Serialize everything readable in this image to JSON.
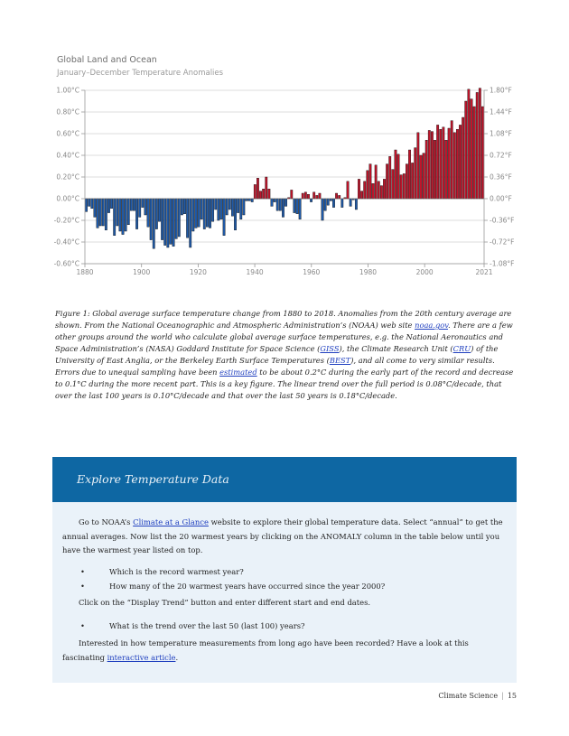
{
  "chart_data": {
    "type": "bar",
    "title": "Global Land and Ocean",
    "subtitle": "January–December Temperature Anomalies",
    "x_ticks": [
      1880,
      1900,
      1920,
      1940,
      1960,
      1980,
      2000,
      2021
    ],
    "y_ticks_left": [
      "1.00°C",
      "0.80°C",
      "0.60°C",
      "0.40°C",
      "0.20°C",
      "0.00°C",
      "-0.20°C",
      "-0.40°C",
      "-0.60°C"
    ],
    "y_ticks_right": [
      "1.80°F",
      "1.44°F",
      "1.08°F",
      "0.72°F",
      "0.36°F",
      "0.00°F",
      "-0.36°F",
      "-0.72°F",
      "-1.08°F"
    ],
    "ylim": [
      -0.6,
      1.0
    ],
    "xlim": [
      1880,
      2021
    ],
    "positive_color": "#c0152b",
    "negative_color": "#1f5aa8",
    "years_start": 1880,
    "values": [
      -0.12,
      -0.07,
      -0.09,
      -0.17,
      -0.27,
      -0.25,
      -0.25,
      -0.29,
      -0.13,
      -0.09,
      -0.34,
      -0.25,
      -0.3,
      -0.33,
      -0.3,
      -0.24,
      -0.11,
      -0.11,
      -0.28,
      -0.17,
      -0.08,
      -0.15,
      -0.26,
      -0.38,
      -0.46,
      -0.28,
      -0.21,
      -0.38,
      -0.43,
      -0.45,
      -0.42,
      -0.44,
      -0.37,
      -0.35,
      -0.15,
      -0.14,
      -0.36,
      -0.45,
      -0.3,
      -0.27,
      -0.26,
      -0.19,
      -0.28,
      -0.26,
      -0.27,
      -0.21,
      -0.1,
      -0.2,
      -0.19,
      -0.34,
      -0.15,
      -0.1,
      -0.16,
      -0.29,
      -0.13,
      -0.19,
      -0.15,
      -0.02,
      -0.02,
      -0.03,
      0.13,
      0.19,
      0.07,
      0.09,
      0.2,
      0.09,
      -0.07,
      -0.03,
      -0.11,
      -0.11,
      -0.17,
      -0.07,
      0.01,
      0.08,
      -0.13,
      -0.14,
      -0.19,
      0.05,
      0.06,
      0.04,
      -0.03,
      0.06,
      0.03,
      0.05,
      -0.2,
      -0.11,
      -0.06,
      -0.02,
      -0.08,
      0.05,
      0.03,
      -0.08,
      0.01,
      0.16,
      -0.07,
      -0.01,
      -0.1,
      0.18,
      0.07,
      0.16,
      0.26,
      0.32,
      0.14,
      0.31,
      0.16,
      0.12,
      0.18,
      0.32,
      0.39,
      0.27,
      0.45,
      0.41,
      0.22,
      0.23,
      0.32,
      0.45,
      0.33,
      0.47,
      0.61,
      0.4,
      0.42,
      0.54,
      0.63,
      0.62,
      0.54,
      0.68,
      0.64,
      0.66,
      0.54,
      0.65,
      0.72,
      0.61,
      0.64,
      0.68,
      0.75,
      0.9,
      1.01,
      0.92,
      0.85,
      0.98,
      1.02,
      0.85
    ]
  },
  "caption": {
    "p1": "Figure 1: Global average surface temperature change from 1880 to 2018. Anomalies from the 20th century average are shown. From the National Oceanographic and Atmospheric Administration’s (NOAA) web site ",
    "link_noaa": "noaa.gov",
    "p2": ". There are a few other groups around the world who calculate global average surface temperatures, e.g. the National Aeronautics and Space Administration’s (NASA) Goddard Institute for Space Science (",
    "link_giss": "GISS",
    "p3": "), the Climate Research Unit (",
    "link_cru": "CRU",
    "p4": ") of the University of East Anglia, or the Berkeley Earth Surface Temperatures (",
    "link_best": "BEST",
    "p5": "), and all come to very similar results. Errors due to unequal sampling have been ",
    "link_estimated": "estimated",
    "p6": " to be about 0.2°C during the early part of the record and decrease to 0.1°C during the more recent part. This is a key figure. The linear trend over the full period is 0.08°C/decade, that over the last 100 years is 0.10°C/decade and that over the last 50 years is 0.18°C/decade."
  },
  "box": {
    "title": "Explore Temperature Data",
    "intro_before": "Go to NOAA’s ",
    "intro_link": "Climate at a Glance",
    "intro_after": " website to explore their global temperature data. Select “annual” to get the annual averages. Now list the 20 warmest years by clicking on the ANOMALY column in the table below until you have the warmest year listed on top.",
    "bullet_char": "•",
    "bullet1": "Which is the record warmest year?",
    "bullet2": "How many of the 20 warmest years have occurred since the year 2000?",
    "trend_text": "Click on the “Display Trend” button and enter different start and end dates.",
    "bullet3": "What is the trend over the last 50 (last 100) years?",
    "outro_before": "Interested in how temperature measurements from long ago have been recorded? Have a look at this fascinating ",
    "outro_link": "interactive article",
    "outro_after": "."
  },
  "footer": {
    "section": "Climate Science",
    "separator": "|",
    "page": "15"
  }
}
